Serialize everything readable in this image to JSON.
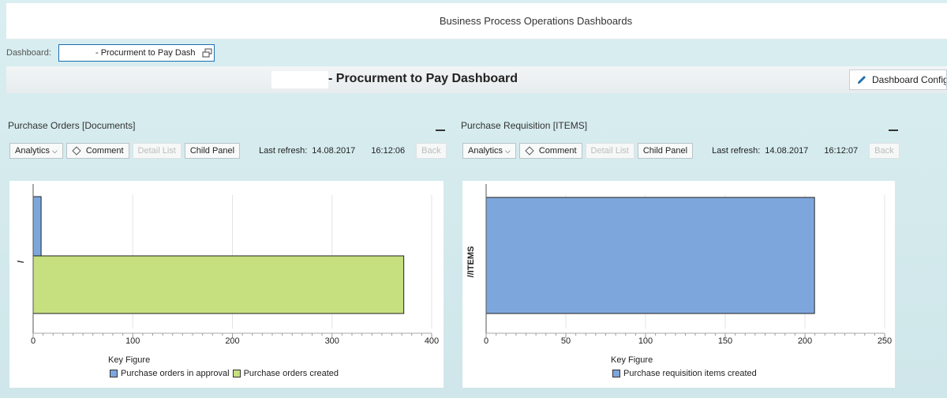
{
  "header": {
    "title": "Business Process Operations Dashboards"
  },
  "dashboard_select": {
    "label": "Dashboard:",
    "value": "- Procurment to Pay Dash"
  },
  "page_title": "- Procurment to Pay Dashboard",
  "config_button": {
    "label": "Dashboard Config"
  },
  "panels": [
    {
      "title": "Purchase Orders [Documents]",
      "toolbar": {
        "analytics": "Analytics",
        "comment": "Comment",
        "detail_list": "Detail List",
        "child_panel": "Child Panel",
        "back": "Back"
      },
      "refresh": {
        "label": "Last refresh:",
        "date": "14.08.2017",
        "time": "16:12:06"
      },
      "legend_title": "Key Figure",
      "legend": [
        "Purchase orders in approval",
        "Purchase orders created"
      ]
    },
    {
      "title": "Purchase Requisition [ITEMS]",
      "toolbar": {
        "analytics": "Analytics",
        "comment": "Comment",
        "detail_list": "Detail List",
        "child_panel": "Child Panel",
        "back": "Back"
      },
      "refresh": {
        "label": "Last refresh:",
        "date": "14.08.2017",
        "time": "16:12:07"
      },
      "legend_title": "Key Figure",
      "legend": [
        "Purchase requisition items created"
      ]
    }
  ],
  "colors": {
    "blue": "#7da7dc",
    "green": "#c6df7f",
    "panel_bg": "#d6ecef"
  },
  "chart_data": [
    {
      "type": "bar",
      "orientation": "horizontal",
      "categories": [
        "/"
      ],
      "ylabel": "/",
      "xlim": [
        0,
        400
      ],
      "xticks": [
        0,
        100,
        200,
        300,
        400
      ],
      "series": [
        {
          "name": "Purchase orders in approval",
          "values": [
            8
          ],
          "color": "#7da7dc"
        },
        {
          "name": "Purchase orders created",
          "values": [
            372
          ],
          "color": "#c6df7f"
        }
      ]
    },
    {
      "type": "bar",
      "orientation": "horizontal",
      "categories": [
        "//ITEMS"
      ],
      "ylabel": "//ITEMS",
      "xlim": [
        0,
        250
      ],
      "xticks": [
        0,
        50,
        100,
        150,
        200,
        250
      ],
      "series": [
        {
          "name": "Purchase requisition items created",
          "values": [
            206
          ],
          "color": "#7da7dc"
        }
      ]
    }
  ]
}
